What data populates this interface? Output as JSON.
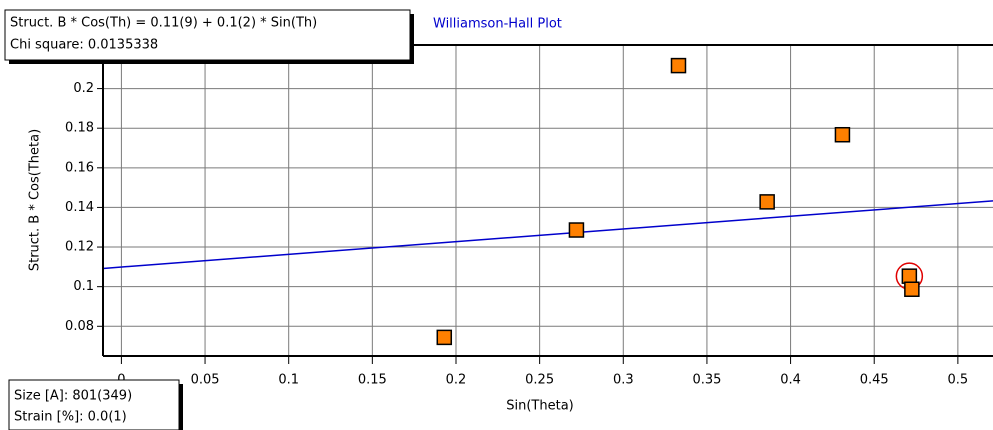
{
  "chart_data": {
    "type": "scatter",
    "title": "Williamson-Hall Plot",
    "x_label": "Sin(Theta)",
    "y_label": "Struct. B * Cos(Theta)",
    "fit_label": "Struct. B * Cos(Th) = 0.11(9) + 0.1(2) * Sin(Th)",
    "chi_square_label": "Chi square: 0.0135338",
    "size_label": "Size [A]: 801(349)",
    "strain_label": "Strain [%]: 0.0(1)",
    "xlim": [
      -0.011,
      0.521
    ],
    "ylim": [
      0.065,
      0.222
    ],
    "xticks": [
      0,
      0.05,
      0.1,
      0.15,
      0.2,
      0.25,
      0.3,
      0.35,
      0.4,
      0.45,
      0.5
    ],
    "yticks": [
      0.08,
      0.1,
      0.12,
      0.14,
      0.16,
      0.18,
      0.2
    ],
    "grid": true,
    "selected_index": 5,
    "series": [
      {
        "type": "scatter",
        "color": "#ff8000",
        "x": [
          0.193,
          0.272,
          0.333,
          0.386,
          0.431,
          0.471,
          0.4725
        ],
        "values": [
          0.0744,
          0.1286,
          0.2116,
          0.1428,
          0.1767,
          0.1053,
          0.0987
        ]
      },
      {
        "type": "line",
        "color": "#0000cc",
        "x": [
          -0.011,
          0.521
        ],
        "values": [
          0.1092,
          0.1433
        ]
      }
    ]
  }
}
